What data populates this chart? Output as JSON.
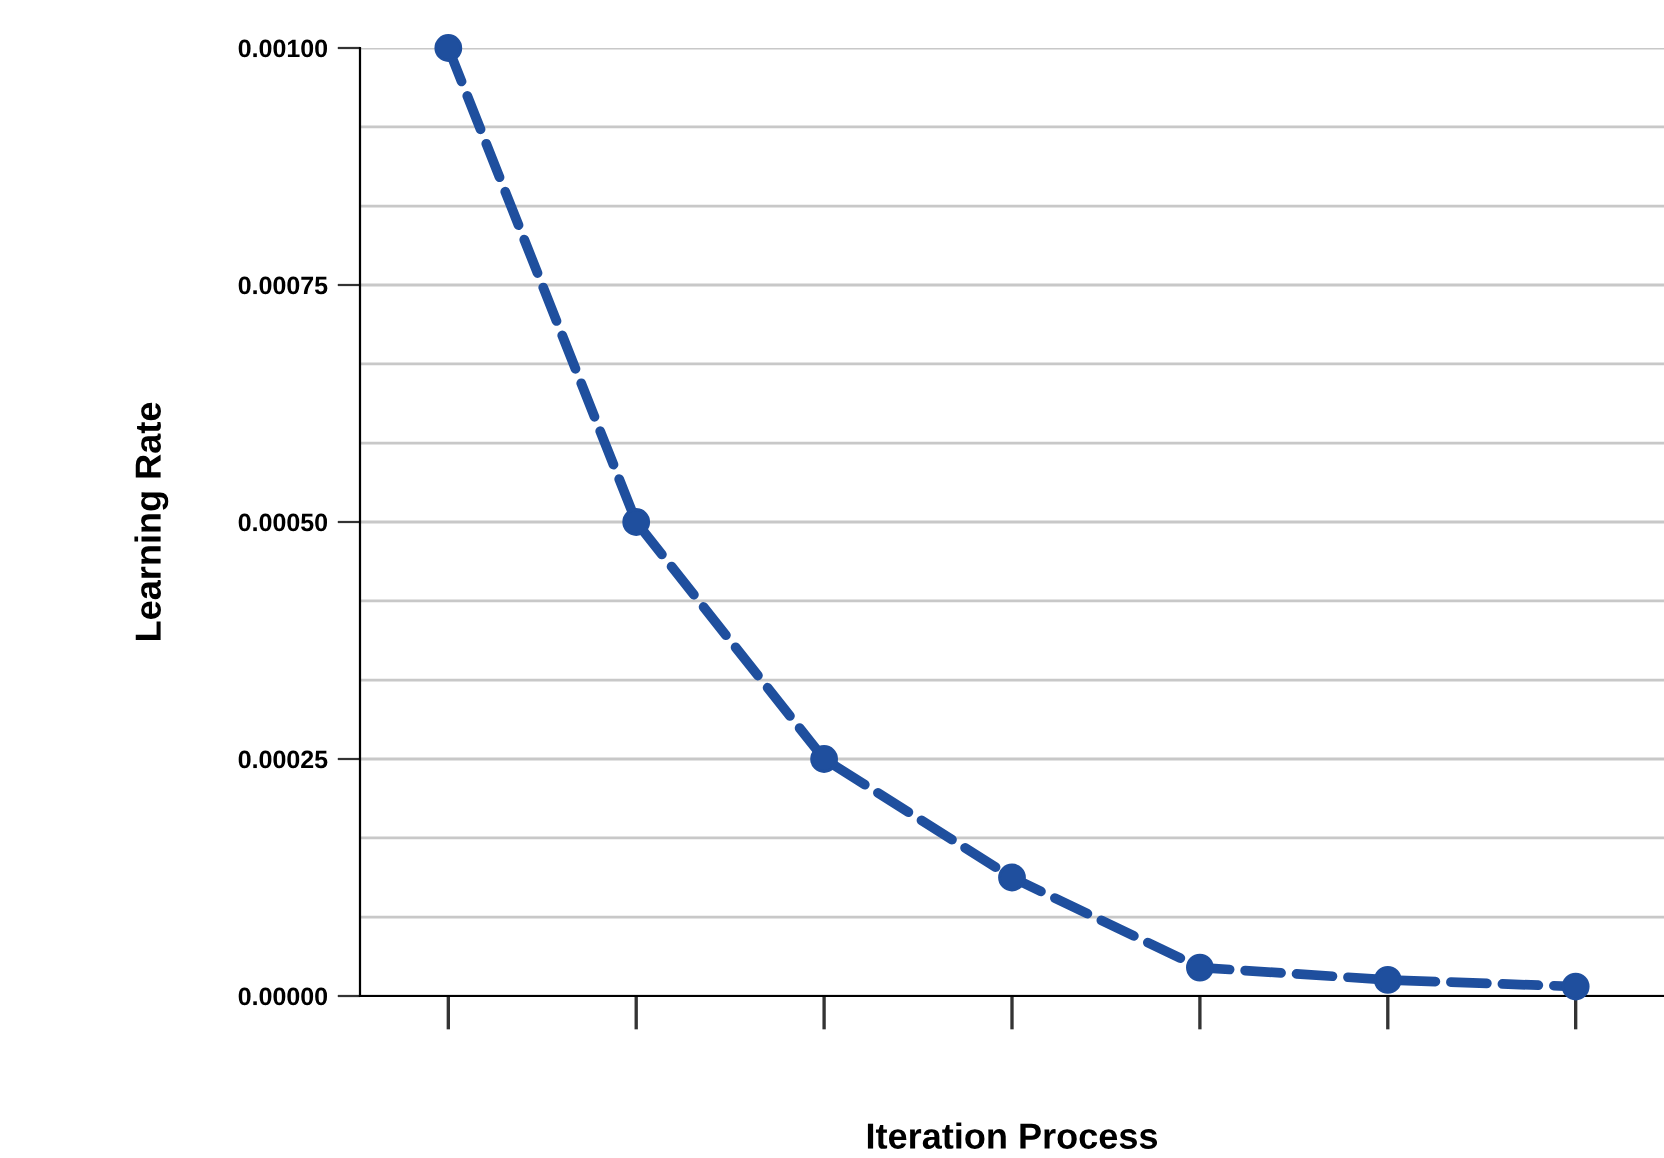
{
  "chart_data": {
    "type": "line",
    "xlabel": "Iteration Process",
    "ylabel": "Learning Rate",
    "categories": [
      null,
      null,
      null,
      null,
      null,
      null,
      null
    ],
    "series": [
      {
        "color": "#1f4f9e",
        "values": [
          0.001,
          0.0005,
          0.00025,
          0.000125,
          3e-05,
          1.7e-05,
          1e-05
        ]
      }
    ],
    "ylim": [
      0,
      0.001
    ],
    "yticks": [
      {
        "value": 0,
        "label": "0.00000"
      },
      {
        "value": 8.33e-05,
        "label": null
      },
      {
        "value": 0.0001667,
        "label": null
      },
      {
        "value": 0.00025,
        "label": "0.00025"
      },
      {
        "value": 0.0003333,
        "label": null
      },
      {
        "value": 0.0004167,
        "label": null
      },
      {
        "value": 0.0005,
        "label": "0.00050"
      },
      {
        "value": 0.0005833,
        "label": null
      },
      {
        "value": 0.0006667,
        "label": null
      },
      {
        "value": 0.00075,
        "label": "0.00075"
      },
      {
        "value": 0.0008333,
        "label": null
      },
      {
        "value": 0.0009167,
        "label": null
      },
      {
        "value": 0.001,
        "label": "0.00100"
      }
    ],
    "grid": "y",
    "marker": "circle",
    "line_style": "dashed",
    "legend": false
  }
}
